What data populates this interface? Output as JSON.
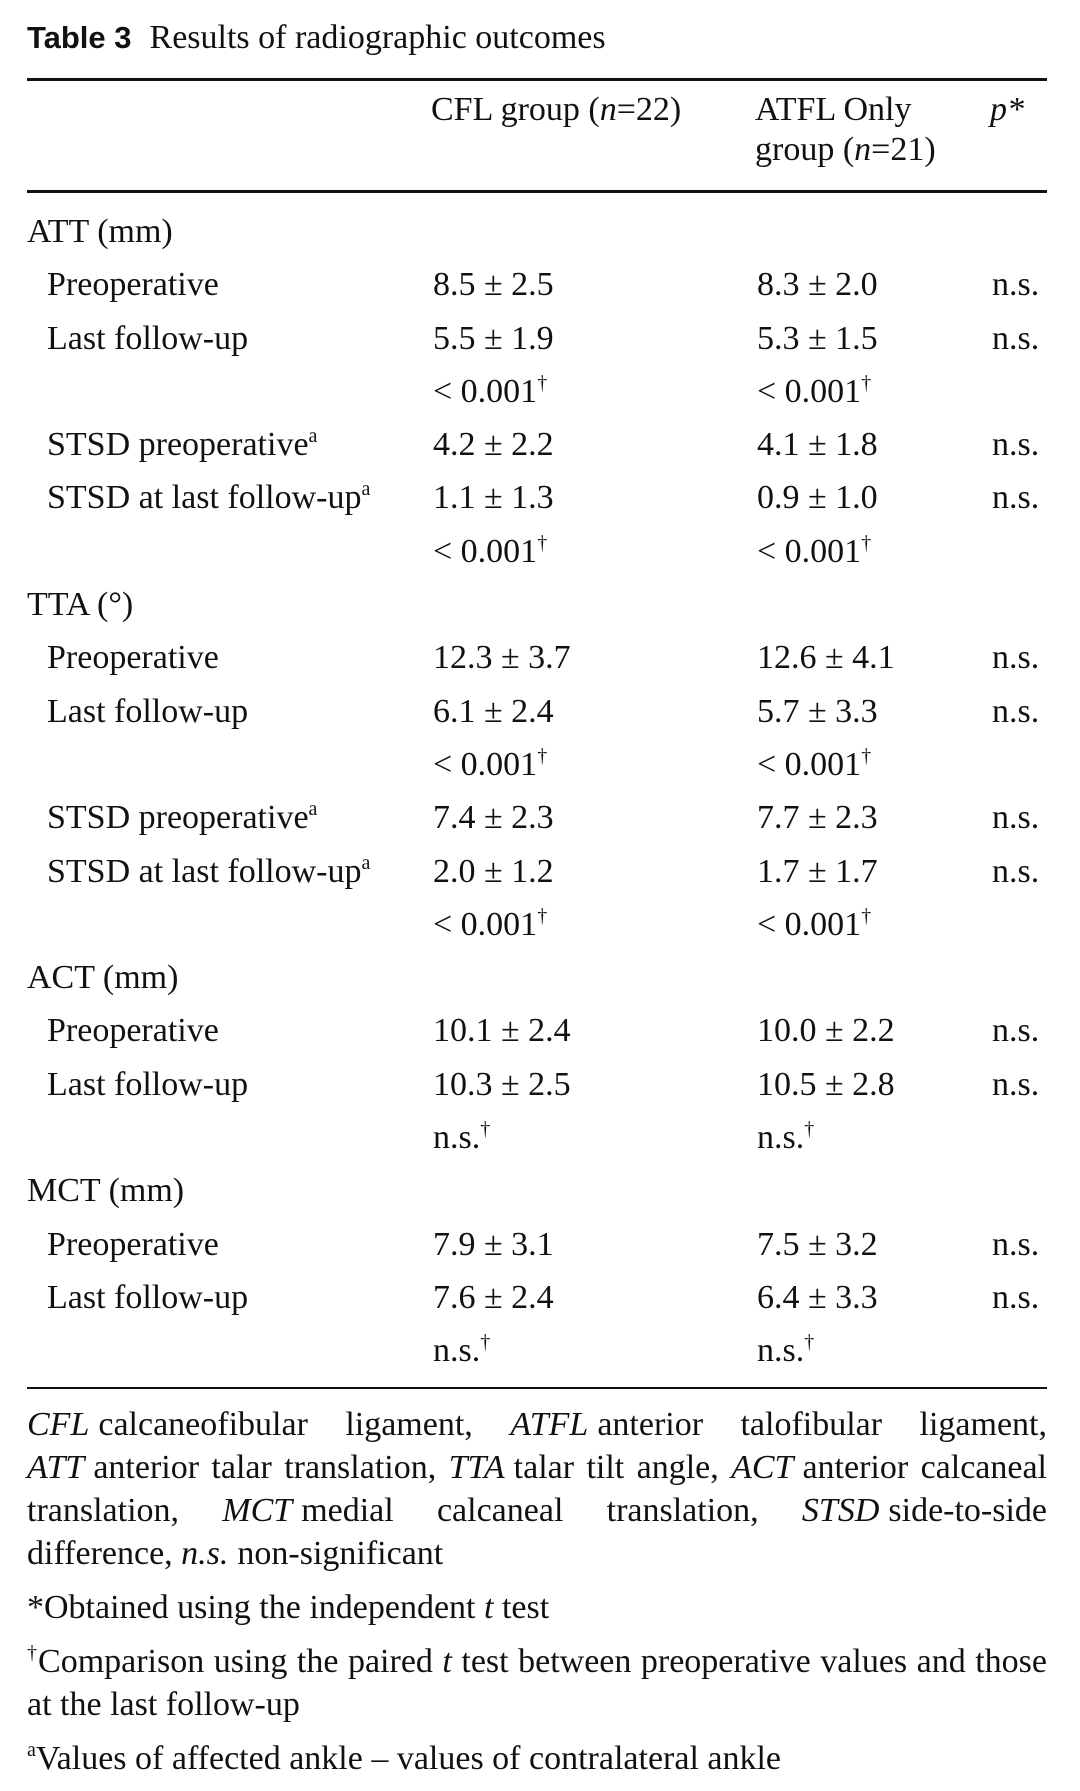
{
  "caption": {
    "label": "Table 3",
    "title": "Results of radiographic outcomes"
  },
  "headers": {
    "cfl": {
      "prefix": "CFL group (",
      "n_var": "n",
      "n_val": "=22)"
    },
    "atfl_line1": "ATFL Only",
    "atfl_line2": {
      "prefix": "group (",
      "n_var": "n",
      "n_val": "=21)"
    },
    "p": "p*"
  },
  "rows": [
    {
      "kind": "section",
      "label": "ATT (mm)"
    },
    {
      "kind": "sub",
      "label": "Preoperative",
      "sup": "",
      "cfl": "8.5 ± 2.5",
      "cfl_sup": "",
      "atfl": "8.3 ± 2.0",
      "atfl_sup": "",
      "p": "n.s."
    },
    {
      "kind": "sub",
      "label": "Last follow-up",
      "sup": "",
      "cfl": "5.5 ± 1.9",
      "cfl_sup": "",
      "atfl": "5.3 ± 1.5",
      "atfl_sup": "",
      "p": "n.s."
    },
    {
      "kind": "sub",
      "label": "",
      "sup": "",
      "cfl": "< 0.001",
      "cfl_sup": "†",
      "atfl": "< 0.001",
      "atfl_sup": "†",
      "p": ""
    },
    {
      "kind": "sub",
      "label": "STSD preoperative",
      "sup": "a",
      "cfl": "4.2 ± 2.2",
      "cfl_sup": "",
      "atfl": "4.1 ± 1.8",
      "atfl_sup": "",
      "p": "n.s."
    },
    {
      "kind": "sub",
      "label": "STSD at last follow-up",
      "sup": "a",
      "cfl": "1.1 ± 1.3",
      "cfl_sup": "",
      "atfl": "0.9 ± 1.0",
      "atfl_sup": "",
      "p": "n.s."
    },
    {
      "kind": "sub",
      "label": "",
      "sup": "",
      "cfl": "< 0.001",
      "cfl_sup": "†",
      "atfl": "< 0.001",
      "atfl_sup": "†",
      "p": ""
    },
    {
      "kind": "section",
      "label": "TTA (°)"
    },
    {
      "kind": "sub",
      "label": "Preoperative",
      "sup": "",
      "cfl": "12.3 ± 3.7",
      "cfl_sup": "",
      "atfl": "12.6 ± 4.1",
      "atfl_sup": "",
      "p": "n.s."
    },
    {
      "kind": "sub",
      "label": "Last follow-up",
      "sup": "",
      "cfl": "6.1 ± 2.4",
      "cfl_sup": "",
      "atfl": "5.7 ± 3.3",
      "atfl_sup": "",
      "p": "n.s."
    },
    {
      "kind": "sub",
      "label": "",
      "sup": "",
      "cfl": "< 0.001",
      "cfl_sup": "†",
      "atfl": "< 0.001",
      "atfl_sup": "†",
      "p": ""
    },
    {
      "kind": "sub",
      "label": "STSD preoperative",
      "sup": "a",
      "cfl": "7.4 ± 2.3",
      "cfl_sup": "",
      "atfl": "7.7 ± 2.3",
      "atfl_sup": "",
      "p": "n.s."
    },
    {
      "kind": "sub",
      "label": "STSD at last follow-up",
      "sup": "a",
      "cfl": "2.0 ± 1.2",
      "cfl_sup": "",
      "atfl": "1.7 ± 1.7",
      "atfl_sup": "",
      "p": "n.s."
    },
    {
      "kind": "sub",
      "label": "",
      "sup": "",
      "cfl": "< 0.001",
      "cfl_sup": "†",
      "atfl": "< 0.001",
      "atfl_sup": "†",
      "p": ""
    },
    {
      "kind": "section",
      "label": "ACT (mm)"
    },
    {
      "kind": "sub",
      "label": "Preoperative",
      "sup": "",
      "cfl": "10.1 ± 2.4",
      "cfl_sup": "",
      "atfl": "10.0 ± 2.2",
      "atfl_sup": "",
      "p": "n.s."
    },
    {
      "kind": "sub",
      "label": "Last follow-up",
      "sup": "",
      "cfl": "10.3 ± 2.5",
      "cfl_sup": "",
      "atfl": "10.5 ± 2.8",
      "atfl_sup": "",
      "p": "n.s."
    },
    {
      "kind": "sub",
      "label": "",
      "sup": "",
      "cfl": "n.s.",
      "cfl_sup": "†",
      "atfl": "n.s.",
      "atfl_sup": "†",
      "p": ""
    },
    {
      "kind": "section",
      "label": "MCT (mm)"
    },
    {
      "kind": "sub",
      "label": "Preoperative",
      "sup": "",
      "cfl": "7.9 ± 3.1",
      "cfl_sup": "",
      "atfl": "7.5 ± 3.2",
      "atfl_sup": "",
      "p": "n.s."
    },
    {
      "kind": "sub",
      "label": "Last follow-up",
      "sup": "",
      "cfl": "7.6 ± 2.4",
      "cfl_sup": "",
      "atfl": "6.4 ± 3.3",
      "atfl_sup": "",
      "p": "n.s."
    },
    {
      "kind": "sub",
      "label": "",
      "sup": "",
      "cfl": "n.s.",
      "cfl_sup": "†",
      "atfl": "n.s.",
      "atfl_sup": "†",
      "p": ""
    }
  ],
  "notes": {
    "abbreviations": [
      {
        "abbr": "CFL",
        "text": "calcaneofibular ligament,"
      },
      {
        "abbr": "ATFL",
        "text": "anterior talofibular ligament,"
      },
      {
        "abbr": "ATT",
        "text": "anterior talar translation,"
      },
      {
        "abbr": "TTA",
        "text": "talar tilt angle,"
      },
      {
        "abbr": "ACT",
        "text": "anterior calcaneal translation,"
      },
      {
        "abbr": "MCT",
        "text": "medial calcaneal translation,"
      },
      {
        "abbr": "STSD",
        "text": "side-to-side difference,"
      },
      {
        "abbr": "n.s.",
        "text": "non-significant"
      }
    ],
    "star": {
      "mark": "*",
      "before": "Obtained using the independent ",
      "var": "t",
      "after": " test"
    },
    "dagger": {
      "mark": "†",
      "before": "Comparison using the paired ",
      "var": "t",
      "after": " test between preoperative values and those at the last follow-up"
    },
    "a": {
      "mark": "a",
      "text": "Values of affected ankle – values of contralateral ankle"
    }
  }
}
